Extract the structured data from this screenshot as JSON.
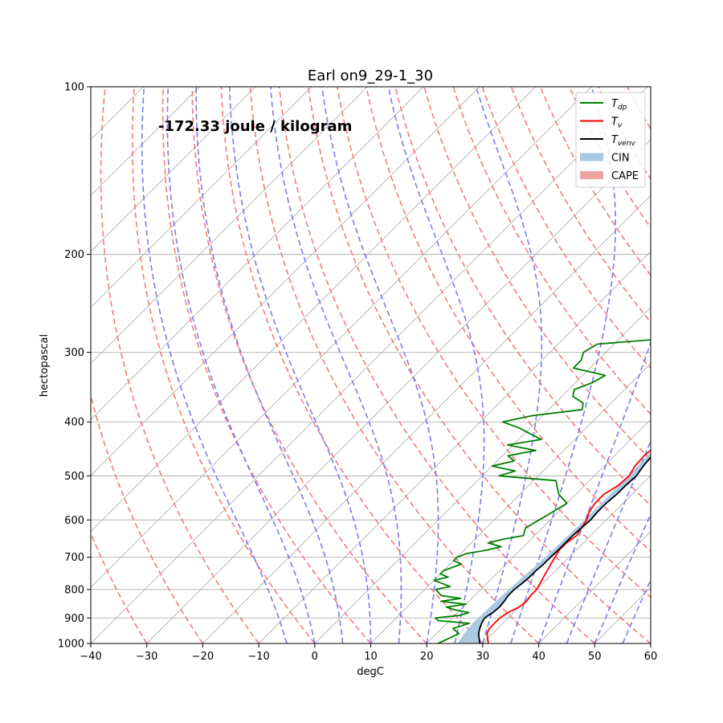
{
  "chart_data": {
    "type": "line",
    "title": "Earl on9_29-1_30",
    "xlabel": "degC",
    "ylabel": "hectopascal",
    "annotation": "-172.33 joule / kilogram",
    "xlim": [
      -40,
      60
    ],
    "plim": [
      1000,
      100
    ],
    "y_scale": "log",
    "x_ticks": [
      "−40",
      "−30",
      "−20",
      "−10",
      "0",
      "10",
      "20",
      "30",
      "40",
      "50",
      "60"
    ],
    "x_tick_values": [
      -40,
      -30,
      -20,
      -10,
      0,
      10,
      20,
      30,
      40,
      50,
      60
    ],
    "p_ticks": [
      1000,
      900,
      800,
      700,
      600,
      500,
      400,
      300,
      200,
      100
    ],
    "legend": {
      "placement": "top-right",
      "entries": [
        {
          "label": "T_dp",
          "sub": "dp",
          "color": "#008000",
          "kind": "line"
        },
        {
          "label": "T_v",
          "sub": "v",
          "color": "#ff0000",
          "kind": "line"
        },
        {
          "label": "T_venv",
          "sub": "venv",
          "color": "#000000",
          "kind": "line"
        },
        {
          "label": "CIN",
          "color": "#a6c8e3",
          "kind": "patch"
        },
        {
          "label": "CAPE",
          "color": "#eea4a4",
          "kind": "patch"
        }
      ]
    },
    "colors": {
      "dry_adiabat": "#f47b7b",
      "moist_adiabat": "#7b7bf0",
      "isotherm": "#b0b0b0",
      "cin": "#a6c8e3",
      "cape": "#eea4a4"
    },
    "series": [
      {
        "name": "T_dp",
        "color": "#008000",
        "p": [
          1000,
          980,
          960,
          940,
          930,
          920,
          910,
          900,
          890,
          880,
          870,
          860,
          850,
          840,
          830,
          820,
          810,
          800,
          790,
          780,
          770,
          760,
          750,
          740,
          730,
          720,
          710,
          700,
          690,
          680,
          670,
          660,
          650,
          640,
          620,
          600,
          580,
          560,
          540,
          520,
          510,
          500,
          490,
          480,
          470,
          460,
          450,
          440,
          430,
          420,
          410,
          400,
          390,
          380,
          370,
          360,
          350,
          340,
          330,
          320,
          310,
          300,
          290,
          280,
          270,
          260,
          250,
          240,
          230,
          222
        ],
        "t": [
          22,
          23,
          24,
          22,
          23,
          24,
          18,
          17,
          21,
          22,
          19,
          17,
          20,
          15,
          18,
          14,
          13,
          12,
          14,
          12,
          10,
          12,
          10,
          10,
          11,
          12,
          10,
          10,
          11,
          14,
          16,
          13,
          15,
          18,
          17,
          18,
          19,
          20,
          17,
          15,
          14,
          3,
          5,
          0,
          3,
          1,
          5,
          -1,
          4,
          1,
          -2,
          -6,
          -2,
          6,
          5,
          2,
          1,
          3,
          4,
          -3,
          -3,
          -4,
          -3,
          14,
          15,
          16,
          16,
          13,
          10,
          8
        ]
      },
      {
        "name": "T_v",
        "color": "#ff0000",
        "p": [
          1000,
          980,
          960,
          940,
          920,
          900,
          880,
          860,
          840,
          820,
          800,
          780,
          760,
          740,
          720,
          700,
          680,
          660,
          640,
          620,
          600,
          580,
          560,
          540,
          520,
          500,
          480,
          460,
          440,
          420,
          400,
          380,
          360,
          340,
          320,
          300,
          280,
          260,
          240,
          230,
          222
        ],
        "t": [
          31,
          30,
          29,
          28.5,
          28.5,
          28.5,
          29,
          30,
          30.3,
          30,
          30,
          29.5,
          29,
          28.5,
          28,
          27.5,
          27,
          27,
          27.5,
          27,
          26.5,
          25.5,
          25,
          25,
          26,
          26.2,
          25.5,
          25.3,
          25.7,
          25.7,
          25.5,
          25.0,
          24.8,
          24.0,
          23.8,
          22.8,
          23.5,
          23.0,
          21.5,
          20.0,
          20.0
        ]
      },
      {
        "name": "T_venv",
        "color": "#000000",
        "p": [
          1000,
          980,
          960,
          940,
          920,
          910,
          900,
          890,
          880,
          860,
          840,
          820,
          800,
          780,
          760,
          740,
          720,
          700,
          680,
          660,
          640,
          620,
          600,
          580,
          560,
          540,
          520,
          500,
          480,
          460,
          440,
          420,
          400,
          380,
          360,
          340,
          320,
          300,
          280,
          260,
          240,
          222
        ],
        "t": [
          29.5,
          28.5,
          27.5,
          26.8,
          26.2,
          26.0,
          25.8,
          26.0,
          26.3,
          26.5,
          26.3,
          26.0,
          26.0,
          26.3,
          26.5,
          26.5,
          26.7,
          26.7,
          26.8,
          26.8,
          26.8,
          27.0,
          27.2,
          27.0,
          27.0,
          27.3,
          27.3,
          27.5,
          27.0,
          26.7,
          26.5,
          26.3,
          26.0,
          25.5,
          25.0,
          24.5,
          23.8,
          23.0,
          22.0,
          20.8,
          19.5,
          17.5
        ]
      },
      {
        "name": "parcel",
        "color": "#000000",
        "p": [
          1000,
          960,
          920,
          880,
          840,
          800,
          760,
          720,
          680,
          640,
          600,
          560,
          520,
          480,
          440,
          400,
          360,
          320,
          280,
          240,
          222
        ],
        "t": [
          25.5,
          24.9,
          24.6,
          24.7,
          24.8,
          25.0,
          25.3,
          25.6,
          25.8,
          26.0,
          26.1,
          26.1,
          26.1,
          26.0,
          25.8,
          25.5,
          25.0,
          24.0,
          22.5,
          20.5,
          19.5
        ]
      }
    ]
  }
}
